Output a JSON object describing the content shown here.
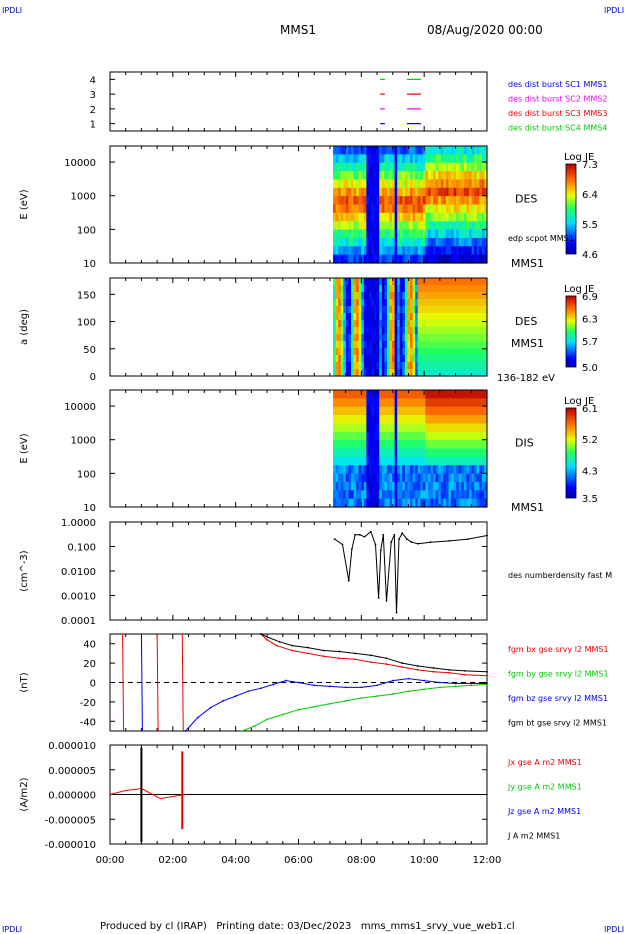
{
  "corner_label": "IPDLI",
  "header": {
    "spacecraft": "MMS1",
    "datetime": "08/Aug/2020 00:00"
  },
  "footer": "Produced by cl (IRAP)   Printing date: 03/Dec/2023   mms_mms1_srvy_vue_web1.cl",
  "colors": {
    "blue": "#0000ee",
    "magenta": "#ee00ee",
    "red": "#ee0000",
    "green": "#00cc00",
    "black": "#000000"
  },
  "x_axis": {
    "ticks": [
      "00:00",
      "02:00",
      "04:00",
      "06:00",
      "08:00",
      "10:00",
      "12:00"
    ],
    "range_hours": [
      0,
      12
    ]
  },
  "chart_data": [
    {
      "type": "line",
      "panel": "availability",
      "yticks": [
        "1",
        "2",
        "3",
        "4"
      ],
      "ylim": [
        0.5,
        4.5
      ],
      "series": [
        {
          "name": "des dist burst SC1 MMS1",
          "color": "#0000ee",
          "level": 1,
          "segments": [
            [
              8.6,
              8.75
            ],
            [
              9.45,
              9.9
            ]
          ]
        },
        {
          "name": "des dist burst SC2 MMS2",
          "color": "#ee00ee",
          "level": 2,
          "segments": [
            [
              8.6,
              8.75
            ],
            [
              9.45,
              9.9
            ]
          ]
        },
        {
          "name": "des dist burst SC3 MMS3",
          "color": "#ee0000",
          "level": 3,
          "segments": [
            [
              8.6,
              8.75
            ],
            [
              9.45,
              9.9
            ]
          ]
        },
        {
          "name": "des dist burst SC4 MMS4",
          "color": "#00cc00",
          "level": 4,
          "segments": [
            [
              8.6,
              8.75
            ],
            [
              9.45,
              9.9
            ]
          ]
        }
      ]
    },
    {
      "type": "heatmap",
      "panel": "des-energy",
      "ylabel": "E (eV)",
      "yscale": "log",
      "yticks": [
        "10",
        "100",
        "1000",
        "10000"
      ],
      "ylim": [
        10,
        30000
      ],
      "label": "DES",
      "sublabel": "MMS1",
      "overlay_label": "edp scpot MMS1",
      "colorbar": {
        "title": "Log JE",
        "ticks": [
          "4.6",
          "5.5",
          "6.4",
          "7.3"
        ],
        "range": [
          4.6,
          7.3
        ]
      },
      "data_start_hours": 7.1
    },
    {
      "type": "heatmap",
      "panel": "des-pitch",
      "ylabel": "a (deg)",
      "yticks": [
        "0",
        "50",
        "100",
        "150"
      ],
      "ylim": [
        0,
        180
      ],
      "label": "DES",
      "sublabel": "MMS1",
      "bottom_label": "136-182 eV",
      "colorbar": {
        "title": "Log JE",
        "ticks": [
          "5.0",
          "5.7",
          "6.3",
          "6.9"
        ],
        "range": [
          5.0,
          6.9
        ]
      },
      "data_start_hours": 7.1
    },
    {
      "type": "heatmap",
      "panel": "dis-energy",
      "ylabel": "E (eV)",
      "yscale": "log",
      "yticks": [
        "10",
        "100",
        "1000",
        "10000"
      ],
      "ylim": [
        10,
        30000
      ],
      "label": "DIS",
      "sublabel": "MMS1",
      "colorbar": {
        "title": "Log JE",
        "ticks": [
          "3.5",
          "4.3",
          "5.2",
          "6.1"
        ],
        "range": [
          3.5,
          6.1
        ]
      },
      "data_start_hours": 7.1
    },
    {
      "type": "line",
      "panel": "density",
      "ylabel": "(cm^-3)",
      "yscale": "log",
      "yticks": [
        "0.0001",
        "0.0010",
        "0.0100",
        "0.100",
        "1.0000"
      ],
      "ylim": [
        0.0001,
        1.0
      ],
      "series": [
        {
          "name": "des numberdensity fast M",
          "color": "#000000",
          "x": [
            7.15,
            7.4,
            7.6,
            7.7,
            7.8,
            7.95,
            8.1,
            8.3,
            8.45,
            8.55,
            8.62,
            8.7,
            8.8,
            8.95,
            9.05,
            9.12,
            9.2,
            9.3,
            9.45,
            9.6,
            9.8,
            10.2,
            10.8,
            11.4,
            12.0
          ],
          "y": [
            0.2,
            0.12,
            0.004,
            0.08,
            0.3,
            0.3,
            0.25,
            0.4,
            0.12,
            0.0008,
            0.07,
            0.3,
            0.0006,
            0.15,
            0.3,
            0.0002,
            0.2,
            0.35,
            0.2,
            0.15,
            0.13,
            0.15,
            0.17,
            0.2,
            0.28
          ]
        }
      ]
    },
    {
      "type": "line",
      "panel": "magnetic-field",
      "ylabel": "(nT)",
      "yticks": [
        "-40",
        "-20",
        "0",
        "20",
        "40"
      ],
      "ylim": [
        -50,
        50
      ],
      "series": [
        {
          "name": "fgm bx gse srvy l2 MMS1",
          "color": "#ee0000",
          "x": [
            4.8,
            5.0,
            5.3,
            5.8,
            6.3,
            6.8,
            7.3,
            7.8,
            8.3,
            8.8,
            9.3,
            9.8,
            10.3,
            10.8,
            11.3,
            12.0
          ],
          "y": [
            50,
            44,
            38,
            33,
            30,
            27,
            25,
            24,
            21,
            19,
            16,
            13,
            11,
            10,
            8,
            7
          ]
        },
        {
          "name": "fgm by gse srvy l2 MMS1",
          "color": "#00cc00",
          "x": [
            4.2,
            4.6,
            5.0,
            5.5,
            6.0,
            6.5,
            7.0,
            7.5,
            8.0,
            8.5,
            9.0,
            9.5,
            10.0,
            10.5,
            11.0,
            11.5,
            12.0
          ],
          "y": [
            -50,
            -45,
            -38,
            -33,
            -28,
            -25,
            -22,
            -19,
            -16,
            -14,
            -12,
            -9,
            -7,
            -5,
            -4,
            -3,
            -2
          ]
        },
        {
          "name": "fgm bz gse srvy l2 MMS1",
          "color": "#0000ee",
          "x": [
            2.4,
            2.8,
            3.2,
            3.6,
            4.0,
            4.4,
            4.8,
            5.2,
            5.6,
            6.0,
            6.5,
            7.0,
            7.5,
            8.0,
            8.5,
            9.0,
            9.5,
            10.0,
            10.5,
            11.0,
            11.5,
            12.0
          ],
          "y": [
            -50,
            -36,
            -26,
            -19,
            -14,
            -9,
            -6,
            -2,
            2,
            0,
            -3,
            -4,
            -5,
            -5,
            -3,
            2,
            4,
            2,
            0,
            -1,
            -1,
            -1
          ]
        },
        {
          "name": "fgm bt gse srvy l2 MMS1",
          "color": "#000000",
          "x": [
            4.8,
            5.0,
            5.4,
            5.8,
            6.3,
            6.8,
            7.3,
            7.8,
            8.3,
            8.8,
            9.3,
            9.8,
            10.3,
            10.8,
            11.3,
            12.0
          ],
          "y": [
            50,
            47,
            42,
            38,
            36,
            33,
            32,
            30,
            28,
            25,
            20,
            17,
            15,
            13,
            12,
            11
          ]
        }
      ]
    },
    {
      "type": "line",
      "panel": "current-density",
      "ylabel": "(A/m2)",
      "yticks": [
        "-0.000010",
        "-0.000005",
        "0.000000",
        "0.000005",
        "0.000010"
      ],
      "ylim": [
        -1e-05,
        1e-05
      ],
      "series": [
        {
          "name": "Jx gse A m2 MMS1",
          "color": "#ee0000"
        },
        {
          "name": "Jy gse A m2 MMS1",
          "color": "#00cc00"
        },
        {
          "name": "Jz gse A m2 MMS1",
          "color": "#0000ee"
        },
        {
          "name": "J A m2 MMS1",
          "color": "#000000"
        }
      ],
      "spikes": [
        {
          "x": 1.0,
          "ymax": 9.5e-06,
          "ymin": -9.6e-06,
          "color": "#000000"
        },
        {
          "x": 2.3,
          "ymax": 8.7e-06,
          "ymin": -7e-06,
          "color": "#ee0000"
        }
      ]
    }
  ]
}
